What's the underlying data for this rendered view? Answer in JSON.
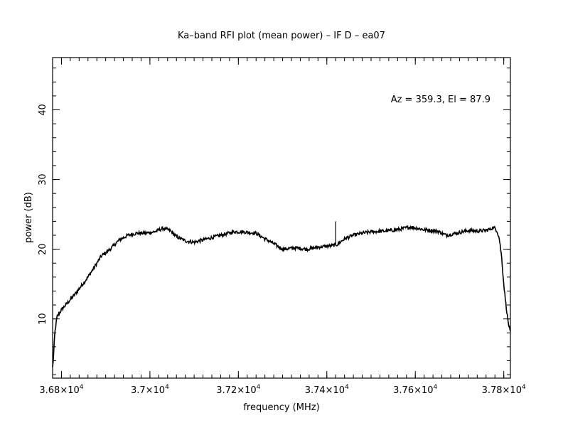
{
  "chart_data": {
    "type": "line",
    "title": "Ka–band RFI plot (mean power) – IF D – ea07",
    "xlabel": "frequency (MHz)",
    "ylabel": "power (dB)",
    "annotation": "Az = 359.3, El = 87.9",
    "xlim": [
      36780,
      37815
    ],
    "ylim": [
      1.5,
      47.5
    ],
    "grid": false,
    "x_ticks": [
      {
        "value": 36800,
        "mantissa": "3.68",
        "exponent": "4"
      },
      {
        "value": 37000,
        "mantissa": "3.7",
        "exponent": "4"
      },
      {
        "value": 37200,
        "mantissa": "3.72",
        "exponent": "4"
      },
      {
        "value": 37400,
        "mantissa": "3.74",
        "exponent": "4"
      },
      {
        "value": 37600,
        "mantissa": "3.76",
        "exponent": "4"
      },
      {
        "value": 37800,
        "mantissa": "3.78",
        "exponent": "4"
      }
    ],
    "x_minor_step": 20,
    "y_ticks": [
      10,
      20,
      30,
      40
    ],
    "y_minor_step": 2,
    "series": [
      {
        "color": "#000000",
        "x": [
          36780,
          36782,
          36785,
          36790,
          36800,
          36830,
          36860,
          36890,
          36910,
          36930,
          36950,
          36970,
          36990,
          37010,
          37030,
          37045,
          37060,
          37080,
          37100,
          37130,
          37160,
          37190,
          37210,
          37240,
          37260,
          37280,
          37300,
          37330,
          37355,
          37380,
          37410,
          37425,
          37430,
          37440,
          37460,
          37480,
          37500,
          37530,
          37560,
          37590,
          37620,
          37650,
          37670,
          37700,
          37720,
          37740,
          37760,
          37770,
          37775,
          37780,
          37785,
          37790,
          37795,
          37800,
          37805,
          37810,
          37815
        ],
        "y": [
          3.0,
          4.5,
          8.0,
          10.3,
          11.3,
          13.5,
          16.0,
          19.0,
          20.0,
          21.3,
          22.0,
          22.3,
          22.3,
          22.5,
          23.0,
          22.7,
          21.8,
          21.2,
          21.0,
          21.5,
          22.0,
          22.5,
          22.5,
          22.3,
          21.5,
          20.8,
          20.0,
          20.2,
          20.0,
          20.3,
          20.5,
          20.7,
          21.0,
          21.5,
          22.0,
          22.3,
          22.5,
          22.6,
          22.8,
          23.2,
          22.8,
          22.6,
          22.0,
          22.4,
          22.7,
          22.6,
          22.7,
          22.9,
          23.1,
          23.0,
          22.6,
          21.5,
          19.0,
          15.0,
          12.0,
          9.5,
          8.0
        ]
      }
    ],
    "spike": {
      "x": 37420,
      "y": 24.0
    }
  }
}
